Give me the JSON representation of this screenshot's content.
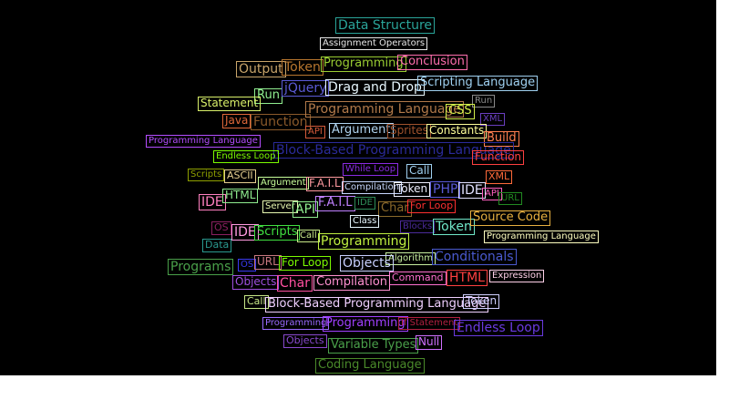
{
  "words": [
    {
      "text": "Data Structure",
      "color": "#2aa59a"
    },
    {
      "text": "Assignment Operators",
      "color": "#e8e8e8"
    },
    {
      "text": "Output",
      "color": "#c8a46a"
    },
    {
      "text": "Token",
      "color": "#b8762e"
    },
    {
      "text": "Programming",
      "color": "#9acd32"
    },
    {
      "text": "Conclusion",
      "color": "#ff6fae"
    },
    {
      "text": "Run",
      "color": "#90ee90"
    },
    {
      "text": "jQuery",
      "color": "#5b5bd6"
    },
    {
      "text": "Drag and Drop",
      "color": "#e8f8ff"
    },
    {
      "text": "Scripting Language",
      "color": "#9fd0f0"
    },
    {
      "text": "Statement",
      "color": "#d9f06a"
    },
    {
      "text": "Run",
      "color": "#8a8a8a"
    },
    {
      "text": "Java",
      "color": "#e0683a"
    },
    {
      "text": "Function",
      "color": "#8b5a2b"
    },
    {
      "text": "Programming Language",
      "color": "#b27a4a"
    },
    {
      "text": "CSS",
      "color": "#d4f04a"
    },
    {
      "text": "XML",
      "color": "#6a3fc0"
    },
    {
      "text": "API",
      "color": "#d45a3a"
    },
    {
      "text": "Argument",
      "color": "#b0d4f0"
    },
    {
      "text": "Sprites",
      "color": "#a0522d"
    },
    {
      "text": "Constants",
      "color": "#ffff99"
    },
    {
      "text": "Build",
      "color": "#ff7f50"
    },
    {
      "text": "Programming Language",
      "color": "#b44dff"
    },
    {
      "text": "Block-Based Programming Language",
      "color": "#2a2a9a"
    },
    {
      "text": "Endless Loop",
      "color": "#7cfc00"
    },
    {
      "text": "Function",
      "color": "#ff4040"
    },
    {
      "text": "While Loop",
      "color": "#8a2be2"
    },
    {
      "text": "Call",
      "color": "#9fd0f0"
    },
    {
      "text": "Scripts",
      "color": "#8fa000"
    },
    {
      "text": "ASCII",
      "color": "#e6d090"
    },
    {
      "text": "Argument",
      "color": "#c8ff9a"
    },
    {
      "text": "F.A.I.L",
      "color": "#ff9aa0"
    },
    {
      "text": "XML",
      "color": "#ff6a3a"
    },
    {
      "text": "Compilation",
      "color": "#c8d8ff"
    },
    {
      "text": "Token",
      "color": "#f0f0ff"
    },
    {
      "text": "PHP",
      "color": "#5a5ad6"
    },
    {
      "text": "IDE",
      "color": "#e0e0ff"
    },
    {
      "text": "API",
      "color": "#ff60c0"
    },
    {
      "text": "URL",
      "color": "#228b22"
    },
    {
      "text": "IDE",
      "color": "#ff80c0"
    },
    {
      "text": "HTML",
      "color": "#90ee90"
    },
    {
      "text": "Server",
      "color": "#e8f8b0"
    },
    {
      "text": "API",
      "color": "#90ee90"
    },
    {
      "text": "F.A.I.L",
      "color": "#c080ff"
    },
    {
      "text": "IDE",
      "color": "#2e8b57"
    },
    {
      "text": "Char",
      "color": "#8b6a2b"
    },
    {
      "text": "For Loop",
      "color": "#ff3030"
    },
    {
      "text": "Class",
      "color": "#e8f8ff"
    },
    {
      "text": "Blocks",
      "color": "#4b2a9a"
    },
    {
      "text": "Token",
      "color": "#70e8c8"
    },
    {
      "text": "Source Code",
      "color": "#e8b040"
    },
    {
      "text": "OS",
      "color": "#8b2060"
    },
    {
      "text": "IDE",
      "color": "#ff9ae0"
    },
    {
      "text": "Scripts",
      "color": "#40e040"
    },
    {
      "text": "Call",
      "color": "#c8e888"
    },
    {
      "text": "Programming",
      "color": "#c0f040"
    },
    {
      "text": "Programming Language",
      "color": "#ffffc0"
    },
    {
      "text": "Data",
      "color": "#2a9a90"
    },
    {
      "text": "Algorithm",
      "color": "#c8f0a0"
    },
    {
      "text": "Conditionals",
      "color": "#4a5ad0"
    },
    {
      "text": "Programs",
      "color": "#4aa04a"
    },
    {
      "text": "OS",
      "color": "#3a3af0"
    },
    {
      "text": "URL",
      "color": "#c87880"
    },
    {
      "text": "For Loop",
      "color": "#7cfc00"
    },
    {
      "text": "Objects",
      "color": "#c8d0ff"
    },
    {
      "text": "Command",
      "color": "#ff70d0"
    },
    {
      "text": "HTML",
      "color": "#ff4040"
    },
    {
      "text": "Expression",
      "color": "#ffd0e8"
    },
    {
      "text": "Objects",
      "color": "#a050e0"
    },
    {
      "text": "Char",
      "color": "#ff50a0"
    },
    {
      "text": "Compilation",
      "color": "#ff90d0"
    },
    {
      "text": "Call",
      "color": "#c8e888"
    },
    {
      "text": "Block-Based Programming Language",
      "color": "#f0d0ff"
    },
    {
      "text": "Token",
      "color": "#d0d0ff"
    },
    {
      "text": "Programming",
      "color": "#9a6aff"
    },
    {
      "text": "Programming",
      "color": "#a040ff"
    },
    {
      "text": "If Statement",
      "color": "#b02040"
    },
    {
      "text": "Endless Loop",
      "color": "#6a3ae0"
    },
    {
      "text": "Objects",
      "color": "#8a4ad0"
    },
    {
      "text": "Variable Types",
      "color": "#4aa04a"
    },
    {
      "text": "Null",
      "color": "#d070ff"
    },
    {
      "text": "Coding Language",
      "color": "#4a8a2a"
    }
  ]
}
